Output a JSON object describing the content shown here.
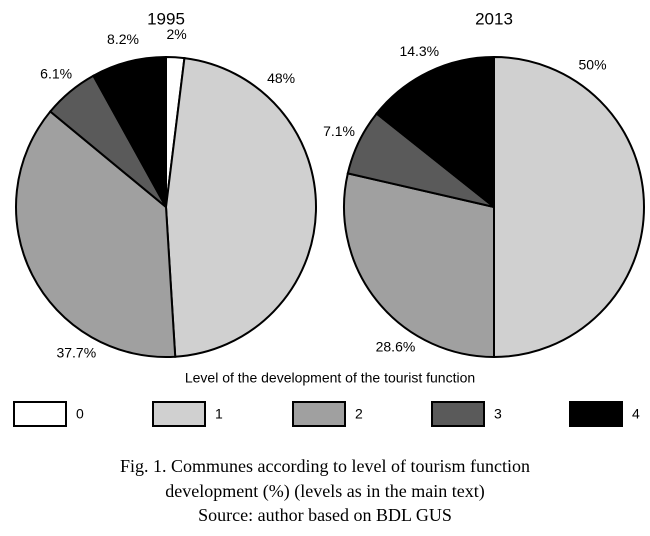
{
  "chart_data": [
    {
      "type": "pie",
      "title": "1995",
      "categories": [
        "0",
        "1",
        "2",
        "3",
        "4"
      ],
      "values": [
        2,
        48,
        37.7,
        6.1,
        8.2
      ],
      "value_labels": [
        "2%",
        "48%",
        "37.7%",
        "6.1%",
        "8.2%"
      ],
      "colors": [
        "#ffffff",
        "#d0d0d0",
        "#a0a0a0",
        "#5a5a5a",
        "#000000"
      ]
    },
    {
      "type": "pie",
      "title": "2013",
      "categories": [
        "0",
        "1",
        "2",
        "3",
        "4"
      ],
      "values": [
        null,
        50,
        28.6,
        7.1,
        14.3
      ],
      "value_labels": [
        null,
        "50%",
        "28.6%",
        "7.1%",
        "14.3%"
      ],
      "colors": [
        "#ffffff",
        "#d0d0d0",
        "#a0a0a0",
        "#5a5a5a",
        "#000000"
      ]
    }
  ],
  "legend_title": "Level of the development of the tourist function",
  "caption": [
    "Fig. 1. Communes according to level of tourism function",
    "development (%) (levels as in the main text)",
    "Source: author based on BDL GUS"
  ]
}
